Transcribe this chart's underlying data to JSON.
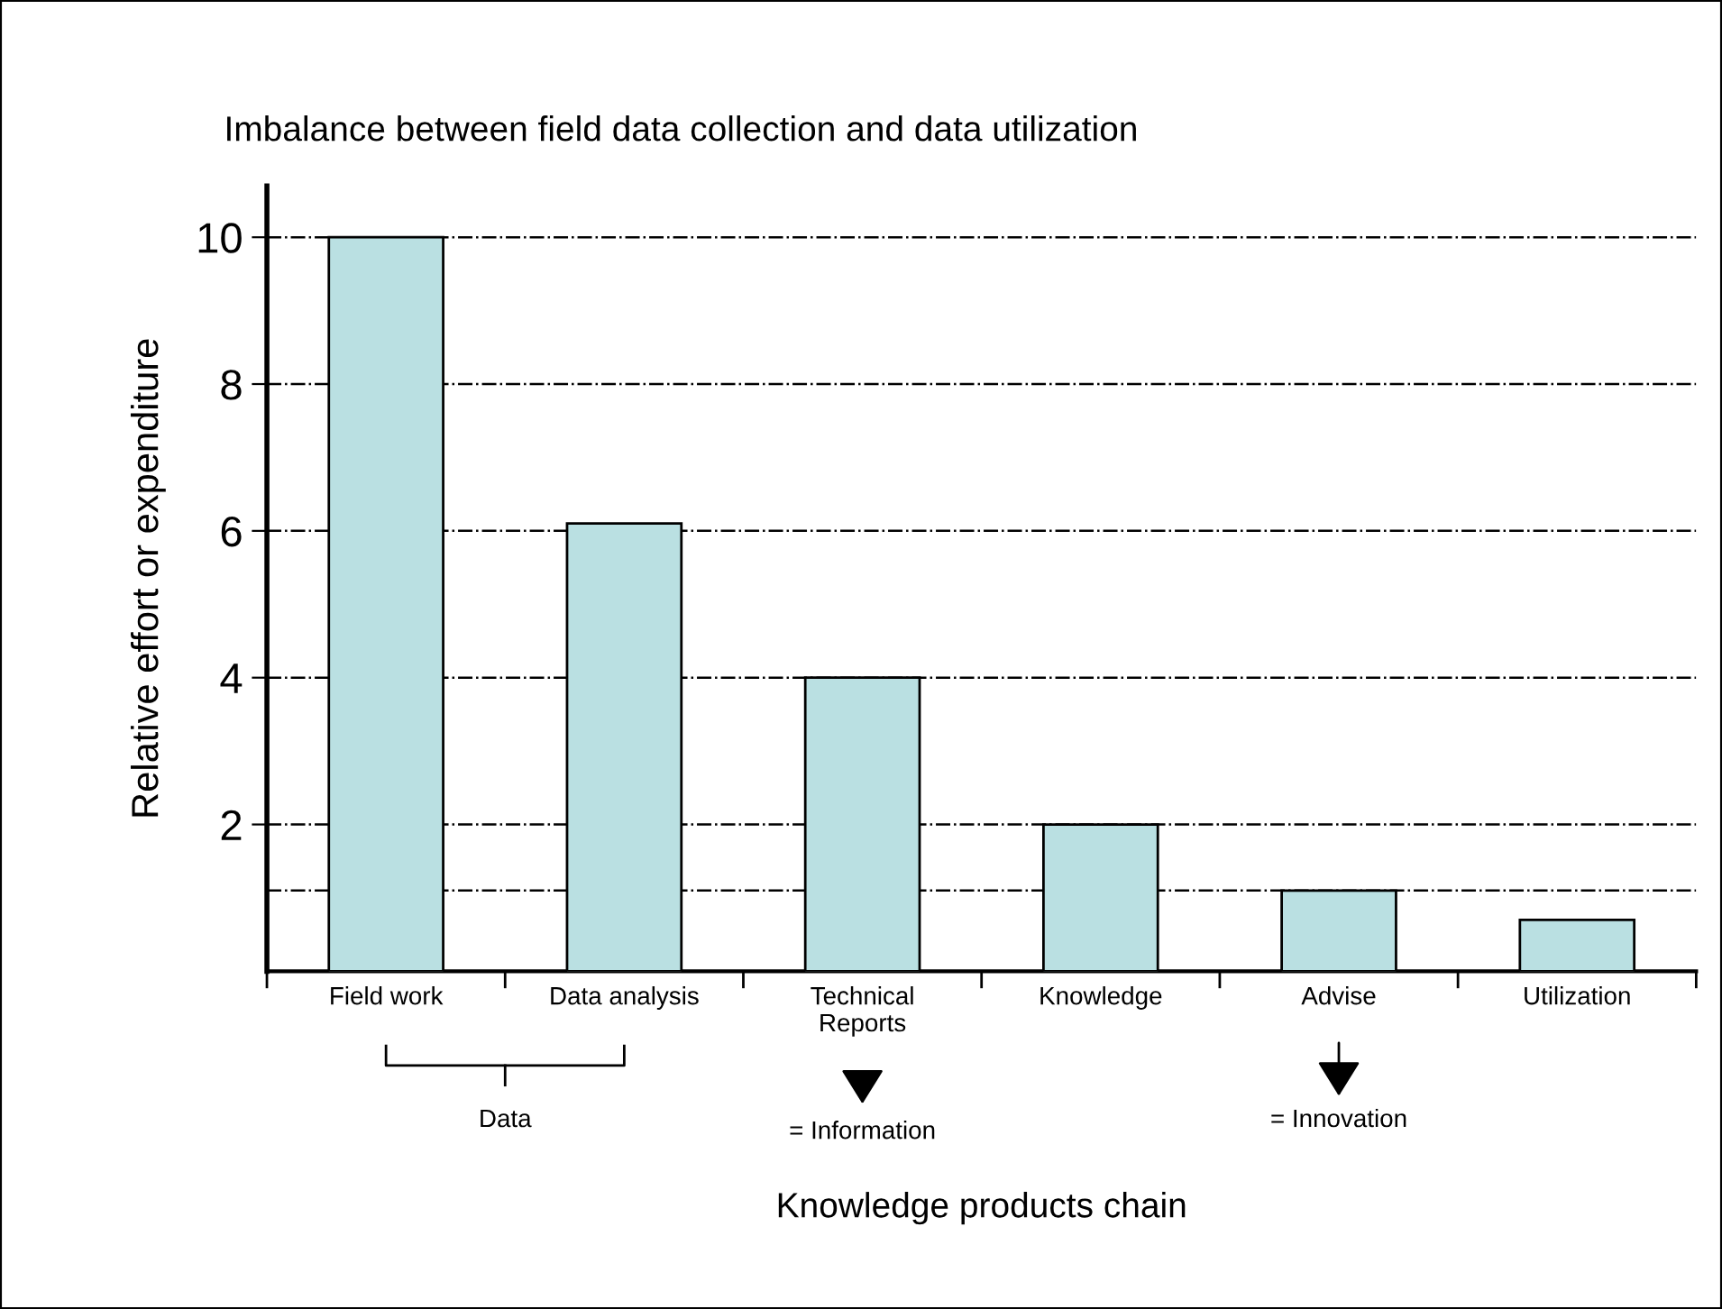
{
  "chart_data": {
    "type": "bar",
    "title": "Imbalance between field data collection and data utilization",
    "xlabel": "Knowledge products chain",
    "ylabel": "Relative effort or expenditure",
    "categories": [
      "Field work",
      "Data analysis",
      "Technical\nReports",
      "Knowledge",
      "Advise",
      "Utilization"
    ],
    "values": [
      10,
      6.1,
      4,
      2,
      1.1,
      0.7
    ],
    "color": "#bae0e2",
    "ylim": [
      0,
      10.7
    ],
    "yticks": [
      2,
      4,
      6,
      8,
      10
    ],
    "grid": "y",
    "line_style": "dashdot",
    "ref_lines": [
      {
        "axis": "y",
        "value": 1.1,
        "label": null,
        "line_style": "dashdot"
      }
    ],
    "annotations": [
      "Data",
      "= Information",
      "= Innovation"
    ]
  }
}
